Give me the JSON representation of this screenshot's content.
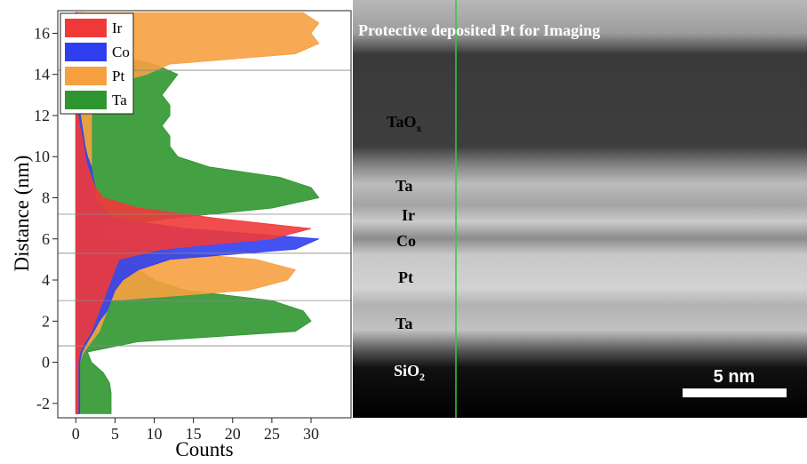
{
  "chart_data": {
    "type": "area",
    "orientation": "horizontal",
    "x_label": "Counts",
    "y_label": "Distance (nm)",
    "x": [
      -2.5,
      -2,
      -1.5,
      -1,
      -0.5,
      0,
      0.5,
      1,
      1.5,
      2,
      2.5,
      3,
      3.5,
      4,
      4.5,
      5,
      5.5,
      6,
      6.5,
      7,
      7.5,
      8,
      8.5,
      9,
      9.5,
      10,
      10.5,
      11,
      11.5,
      12,
      12.5,
      13,
      13.5,
      14,
      14.5,
      15,
      15.5,
      16,
      16.5,
      17
    ],
    "series": [
      {
        "name": "Ta",
        "color": "#2f962f",
        "values": [
          4.5,
          4.5,
          4.5,
          4.3,
          3.5,
          2,
          1.5,
          8,
          28,
          30,
          29,
          25,
          14,
          10,
          8,
          5,
          4,
          3,
          3,
          12,
          25,
          31,
          30,
          26,
          17,
          13,
          12,
          12,
          11,
          12,
          12,
          11,
          12,
          13,
          10,
          4,
          2,
          1,
          1,
          1
        ]
      },
      {
        "name": "Pt",
        "color": "#f7a040",
        "values": [
          0,
          0,
          0,
          0,
          0.2,
          0.5,
          1,
          2,
          3,
          3.5,
          4,
          4.5,
          22,
          27,
          28,
          23,
          8,
          4,
          3,
          3,
          2.5,
          2,
          2,
          2,
          2,
          2,
          2,
          2,
          2,
          2,
          2.5,
          3,
          4,
          9,
          12,
          28,
          31,
          30,
          31,
          29
        ]
      },
      {
        "name": "Co",
        "color": "#2f3ff0",
        "values": [
          0.5,
          0.5,
          0.5,
          0.5,
          0.5,
          0.5,
          0.8,
          1.5,
          2.3,
          3,
          4,
          4.5,
          5,
          6,
          8,
          12,
          28,
          31,
          14,
          5,
          3.5,
          2.5,
          2.5,
          2.2,
          2,
          1.5,
          1.2,
          1,
          0.8,
          0.6,
          0.4,
          0.3,
          0.2,
          0.2,
          0.2,
          0.2,
          0.2,
          0.2,
          0.2,
          0.2
        ]
      },
      {
        "name": "Ir",
        "color": "#f03a3a",
        "values": [
          0.3,
          0.3,
          0.3,
          0.3,
          0.3,
          0.3,
          0.5,
          1.2,
          2,
          2.5,
          3,
          3.5,
          4,
          4.5,
          5,
          5.5,
          11,
          25,
          30,
          18,
          8,
          3.5,
          2.5,
          2,
          1.5,
          1.2,
          1,
          0.8,
          0.5,
          0.3,
          0.2,
          0.2,
          0.2,
          0.2,
          0.2,
          0.2,
          0.2,
          0.2,
          0.2,
          0.2
        ]
      }
    ],
    "legend_order": [
      3,
      2,
      1,
      0
    ],
    "interfaces": [
      0.8,
      3,
      5.3,
      7.2,
      14.2
    ],
    "xlim": [
      -2.3,
      35.1
    ],
    "xticks": [
      0,
      5,
      10,
      15,
      20,
      25,
      30
    ],
    "ylim": [
      -2.7,
      17.1
    ],
    "yticks": [
      -2,
      0,
      2,
      4,
      6,
      8,
      10,
      12,
      14,
      16
    ],
    "legend": "upper left"
  },
  "image": {
    "caption": "Protective  deposited Pt for Imaging",
    "layers": [
      {
        "text": "TaO",
        "sub": "x"
      },
      {
        "text": "Ta"
      },
      {
        "text": "Ir"
      },
      {
        "text": "Co"
      },
      {
        "text": "Pt"
      },
      {
        "text": "Ta"
      },
      {
        "text": "SiO",
        "sub": "2"
      }
    ],
    "scale_bar": "5 nm"
  }
}
